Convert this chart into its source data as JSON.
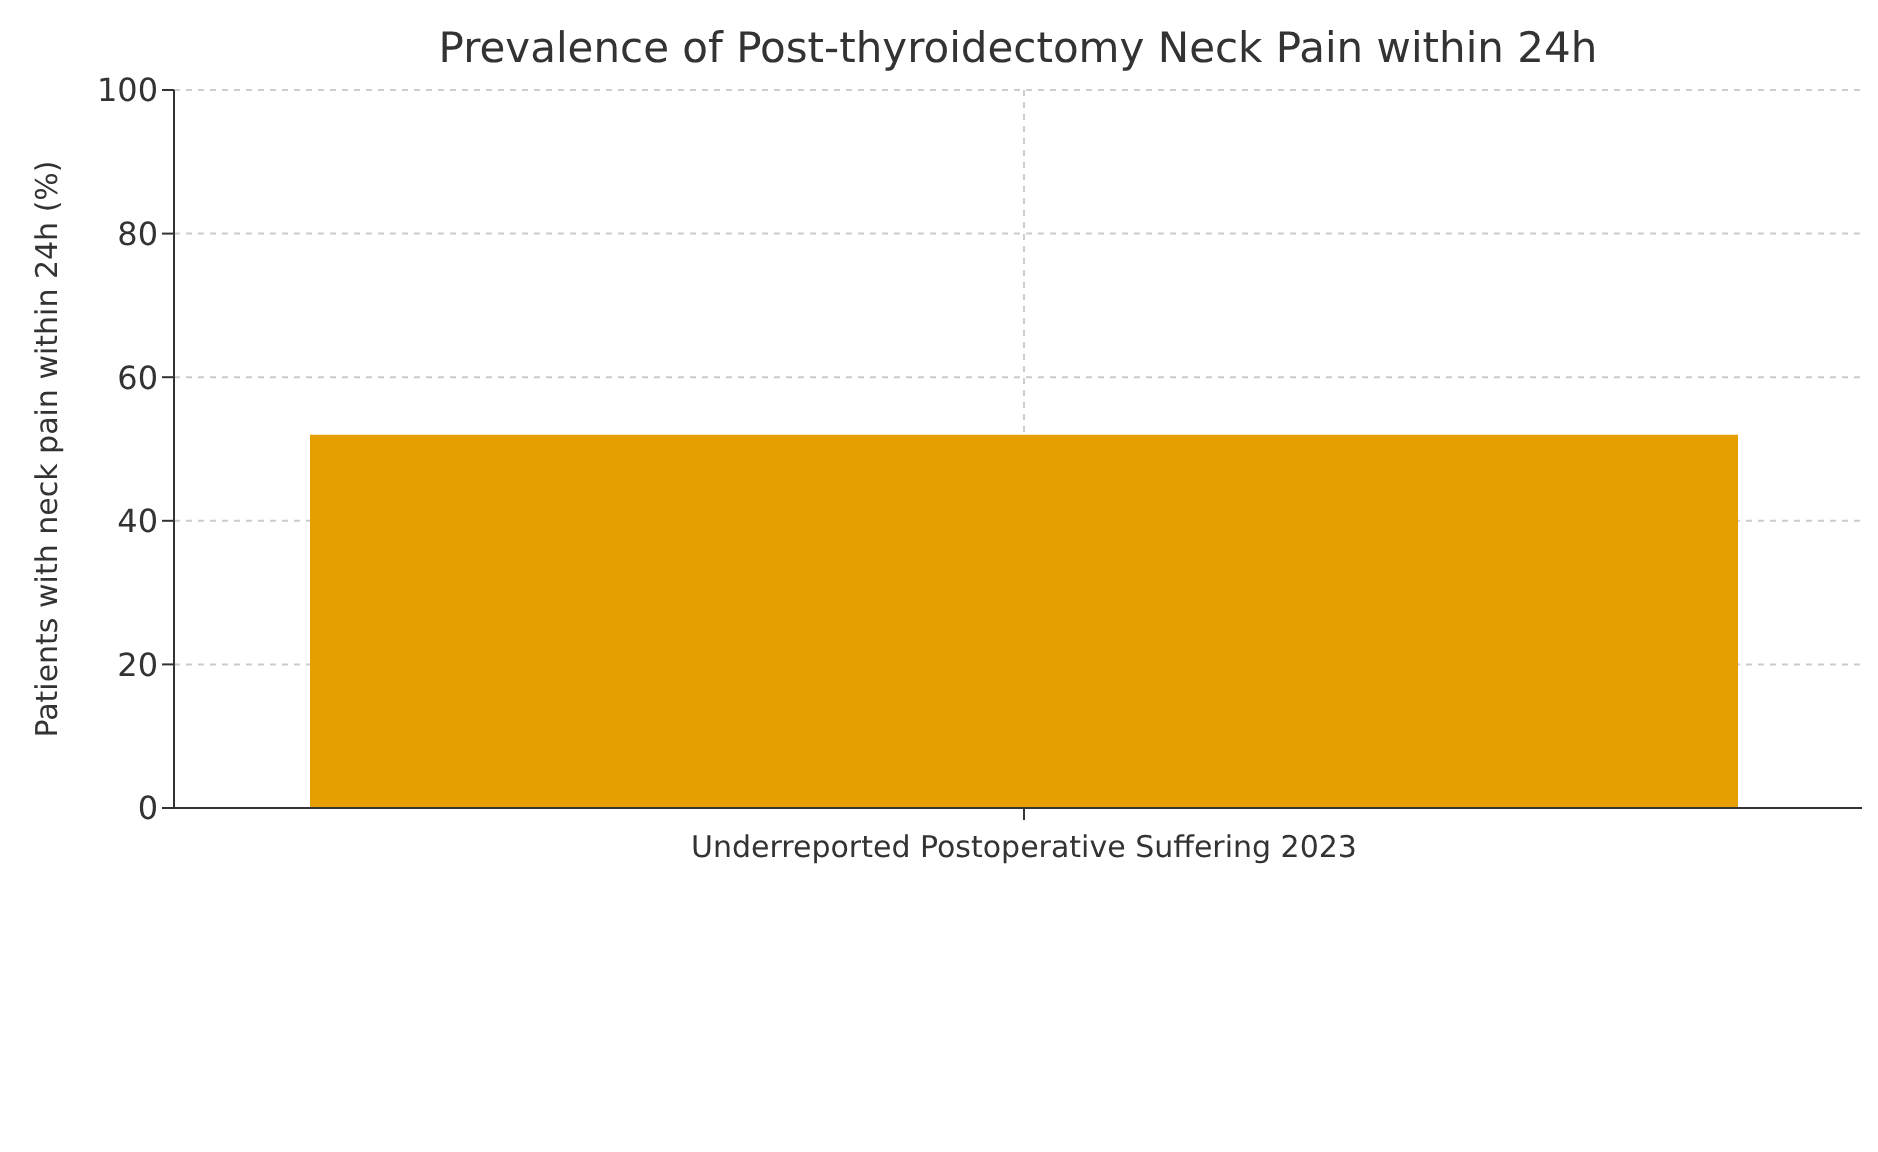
{
  "chart_data": {
    "type": "bar",
    "title": "Prevalence of Post-thyroidectomy Neck Pain within 24h",
    "ylabel": "Patients with neck pain within 24h (%)",
    "categories": [
      "Underreported Postoperative Suffering 2023"
    ],
    "values": [
      52
    ],
    "color": "#e69f00",
    "ylim": [
      0,
      100
    ],
    "yticks": [
      0,
      20,
      40,
      60,
      80,
      100
    ],
    "grid": true
  }
}
